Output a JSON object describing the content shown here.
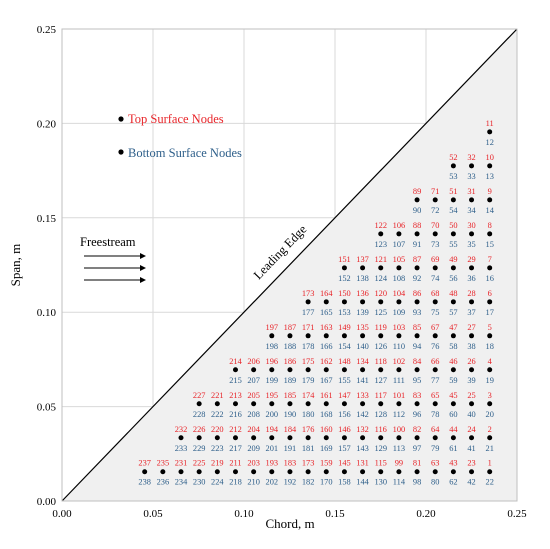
{
  "chart_data": {
    "type": "scatter",
    "xlabel": "Chord, m",
    "ylabel": "Span, m",
    "xlim": [
      0,
      0.25
    ],
    "ylim": [
      0,
      0.25
    ],
    "x_ticks": [
      "0.00",
      "0.05",
      "0.10",
      "0.15",
      "0.20",
      "0.25"
    ],
    "y_ticks": [
      "0.00",
      "0.05",
      "0.10",
      "0.15",
      "0.20",
      "0.25"
    ],
    "grid": true,
    "legend_position": "upper-left",
    "colors": {
      "top": "#e8252a",
      "bottom": "#2e5f8a",
      "marker": "#000000",
      "wing_fill": "#f0f0f0"
    },
    "legend": [
      {
        "name": "Top Surface Nodes",
        "color": "#e8252a"
      },
      {
        "name": "Bottom Surface Nodes",
        "color": "#2e5f8a"
      }
    ],
    "annotations": {
      "freestream": "Freestream",
      "leading_edge": "Leading Edge"
    },
    "node_columns_x": [
      0.0155,
      0.025,
      0.035,
      0.045,
      0.055,
      0.065,
      0.075,
      0.085,
      0.095,
      0.105,
      0.115,
      0.125,
      0.135,
      0.145,
      0.155,
      0.165,
      0.175,
      0.185,
      0.195,
      0.205,
      0.215,
      0.225,
      0.235
    ],
    "node_rows": [
      {
        "y": 0.0155,
        "top": [
          "237",
          "235",
          "233",
          "231",
          "229",
          "225",
          "223",
          "219",
          "217",
          "211",
          "209",
          "203",
          "201",
          "193",
          "191",
          "183",
          "181",
          "173",
          "171",
          "159",
          "157",
          "145",
          "143",
          "131",
          "129",
          "115",
          "113",
          "99",
          "97",
          "81",
          "79",
          "63",
          "61",
          "43",
          "41",
          "23",
          "21",
          "1"
        ],
        "bottom": [
          "238",
          "236",
          "234",
          "230",
          "224",
          "218",
          "210",
          "202",
          "192",
          "182",
          "170",
          "158",
          "144",
          "130",
          "114",
          "98",
          "80",
          "62",
          "42",
          "22"
        ]
      },
      {
        "y": 0.025,
        "top": [
          "232",
          "226",
          "220",
          "212",
          "204",
          "194",
          "184",
          "176",
          "160",
          "146",
          "132",
          "116",
          "100",
          "82",
          "64",
          "44",
          "24",
          "2"
        ],
        "bottom": [
          "233",
          "227",
          "221",
          "213",
          "205",
          "195",
          "185",
          "177",
          "161",
          "147",
          "133",
          "117",
          "101",
          "83",
          "65",
          "45",
          "25",
          "3"
        ]
      },
      {
        "y": 0.035,
        "top": [
          "232",
          "226",
          "220",
          "212",
          "204",
          "194",
          "184",
          "176",
          "160",
          "146",
          "132",
          "116",
          "100",
          "82",
          "64",
          "44",
          "24",
          "2"
        ],
        "bottom": [
          "233",
          "229",
          "223",
          "217",
          "209",
          "201",
          "191",
          "181",
          "169",
          "157",
          "143",
          "129",
          "113",
          "97",
          "79",
          "61",
          "41",
          "21"
        ]
      },
      {
        "y": 0.045,
        "top": [
          "227",
          "221",
          "213",
          "205",
          "195",
          "185",
          "174",
          "161",
          "147",
          "133",
          "117",
          "101",
          "83",
          "65",
          "45",
          "25",
          "3"
        ],
        "bottom": [
          "228",
          "222",
          "216",
          "208",
          "200",
          "190",
          "180",
          "168",
          "156",
          "142",
          "128",
          "112",
          "96",
          "78",
          "60",
          "40",
          "20"
        ]
      },
      {
        "y": 0.055,
        "top": [
          "227",
          "221",
          "213",
          "205",
          "195",
          "185",
          "174",
          "161",
          "147",
          "133",
          "117",
          "101",
          "83",
          "65",
          "45",
          "25",
          "3"
        ],
        "bottom": [
          "228",
          "222",
          "216",
          "208",
          "200",
          "190",
          "180",
          "168",
          "156",
          "142",
          "128",
          "112",
          "96",
          "78",
          "60",
          "40",
          "20"
        ]
      },
      {
        "y": 0.065,
        "top": [
          "214",
          "206",
          "196",
          "186",
          "175",
          "162",
          "148",
          "134",
          "118",
          "102",
          "84",
          "66",
          "46",
          "26",
          "4"
        ],
        "bottom": [
          "215",
          "207",
          "199",
          "189",
          "179",
          "167",
          "155",
          "141",
          "127",
          "111",
          "95",
          "77",
          "59",
          "39",
          "19"
        ]
      },
      {
        "y": 0.075,
        "top": [
          "214",
          "206",
          "196",
          "186",
          "175",
          "162",
          "148",
          "134",
          "118",
          "102",
          "84",
          "66",
          "46",
          "26",
          "4"
        ],
        "bottom": [
          "215",
          "207",
          "199",
          "189",
          "179",
          "167",
          "155",
          "141",
          "127",
          "111",
          "95",
          "77",
          "59",
          "39",
          "19"
        ]
      },
      {
        "y": 0.085,
        "top": [
          "197",
          "187",
          "171",
          "163",
          "149",
          "135",
          "119",
          "103",
          "85",
          "67",
          "47",
          "27",
          "5"
        ],
        "bottom": [
          "198",
          "188",
          "178",
          "166",
          "154",
          "140",
          "126",
          "110",
          "94",
          "76",
          "58",
          "38",
          "18"
        ]
      },
      {
        "y": 0.095,
        "top": [
          "197",
          "187",
          "171",
          "163",
          "149",
          "135",
          "119",
          "103",
          "85",
          "67",
          "47",
          "27",
          "5"
        ],
        "bottom": [
          "198",
          "188",
          "178",
          "166",
          "154",
          "140",
          "126",
          "110",
          "94",
          "76",
          "58",
          "38",
          "18"
        ]
      },
      {
        "y": 0.105,
        "top": [
          "173",
          "164",
          "150",
          "136",
          "120",
          "104",
          "86",
          "68",
          "48",
          "28",
          "6"
        ],
        "bottom": [
          "177",
          "165",
          "153",
          "139",
          "125",
          "109",
          "93",
          "75",
          "57",
          "37",
          "17"
        ]
      },
      {
        "y": 0.115,
        "top": [
          "173",
          "164",
          "150",
          "136",
          "120",
          "104",
          "86",
          "68",
          "48",
          "28",
          "6"
        ],
        "bottom": [
          "177",
          "165",
          "153",
          "139",
          "125",
          "109",
          "93",
          "75",
          "57",
          "37",
          "17"
        ]
      },
      {
        "y": 0.125,
        "top": [
          "151",
          "137",
          "121",
          "105",
          "87",
          "69",
          "49",
          "29",
          "7"
        ],
        "bottom": [
          "152",
          "138",
          "124",
          "108",
          "92",
          "74",
          "56",
          "36",
          "16"
        ]
      },
      {
        "y": 0.135,
        "top": [
          "151",
          "137",
          "121",
          "105",
          "87",
          "69",
          "49",
          "29",
          "7"
        ],
        "bottom": [
          "152",
          "138",
          "124",
          "108",
          "92",
          "74",
          "56",
          "36",
          "16"
        ]
      },
      {
        "y": 0.145,
        "top": [
          "122",
          "106",
          "88",
          "70",
          "50",
          "30",
          "8"
        ],
        "bottom": [
          "123",
          "107",
          "91",
          "73",
          "55",
          "35",
          "15"
        ]
      },
      {
        "y": 0.155,
        "top": [
          "122",
          "106",
          "88",
          "70",
          "50",
          "30",
          "8"
        ],
        "bottom": [
          "123",
          "107",
          "91",
          "73",
          "55",
          "35",
          "15"
        ]
      },
      {
        "y": 0.165,
        "top": [
          "89",
          "71",
          "51",
          "31",
          "9"
        ],
        "bottom": [
          "90",
          "72",
          "54",
          "34",
          "14"
        ]
      },
      {
        "y": 0.175,
        "top": [
          "89",
          "71",
          "51",
          "31",
          "9"
        ],
        "bottom": [
          "90",
          "72",
          "54",
          "34",
          "14"
        ]
      },
      {
        "y": 0.185,
        "top": [
          "52",
          "32",
          "10"
        ],
        "bottom": [
          "53",
          "33",
          "13"
        ]
      },
      {
        "y": 0.195,
        "top": [
          "52",
          "32",
          "10"
        ],
        "bottom": [
          "53",
          "33",
          "13"
        ]
      },
      {
        "y": 0.205,
        "top": [
          "11"
        ],
        "bottom": [
          "12"
        ]
      },
      {
        "y": 0.215,
        "top": [
          "11"
        ],
        "bottom": [
          "12"
        ]
      }
    ]
  }
}
